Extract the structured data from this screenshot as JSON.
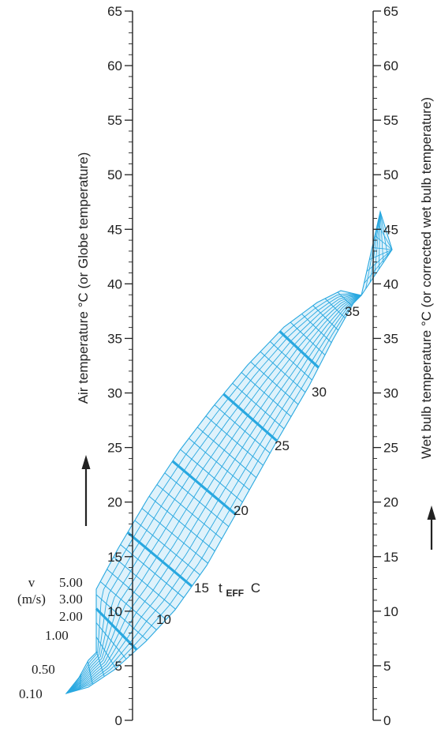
{
  "diagram": {
    "left_axis": {
      "title": "Air temperature °C (or Globe temperature)",
      "ticks": [
        0,
        5,
        10,
        15,
        20,
        25,
        30,
        35,
        40,
        45,
        50,
        55,
        60,
        65
      ],
      "tick_labels": [
        "0",
        "5",
        "10",
        "15",
        "20",
        "25",
        "30",
        "35",
        "40",
        "45",
        "50",
        "55",
        "60",
        "65"
      ],
      "minor_step": 1
    },
    "right_axis": {
      "title": "Wet bulb temperature °C (or corrected wet bulb temperature)",
      "ticks": [
        0,
        5,
        10,
        15,
        20,
        25,
        30,
        35,
        40,
        45,
        50,
        55,
        60,
        65
      ],
      "tick_labels": [
        "0",
        "5",
        "10",
        "15",
        "20",
        "25",
        "30",
        "35",
        "40",
        "45",
        "50",
        "55",
        "60",
        "65"
      ],
      "minor_step": 1
    },
    "velocity": {
      "label_line1": "v",
      "label_line2": "(m/s)",
      "values": [
        "5.00",
        "3.00",
        "2.00",
        "1.00",
        "0.50",
        "0.10"
      ]
    },
    "effective_temperature": {
      "values": [
        "10",
        "15",
        "20",
        "25",
        "30",
        "35"
      ],
      "label_main": "t",
      "label_sub": "EFF",
      "label_unit": "C"
    },
    "colors": {
      "grid": "#29a8e0",
      "fill": "#dff2fb",
      "ink": "#222222"
    }
  }
}
